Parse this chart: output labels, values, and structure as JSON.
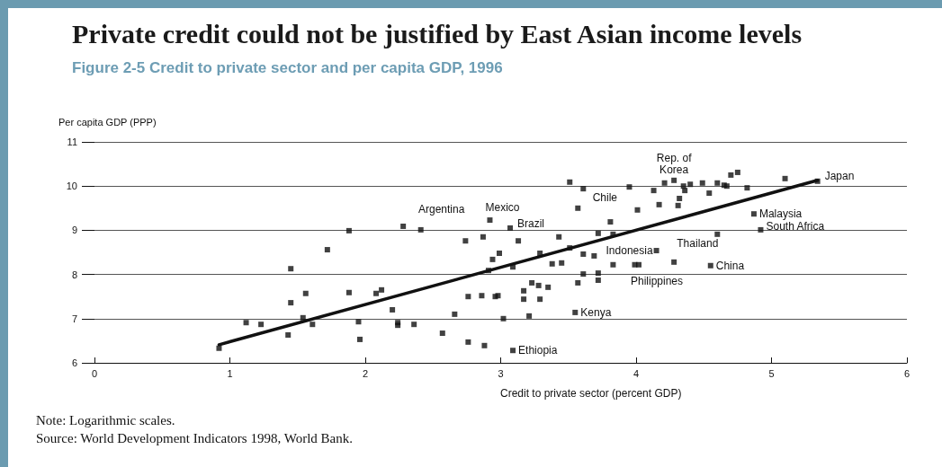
{
  "chart_data": {
    "type": "scatter",
    "title": "Private credit could not be justified by East Asian income levels",
    "subtitle": "Figure 2-5 Credit to private sector and per capita GDP, 1996",
    "xlabel": "Credit to private sector (percent GDP)",
    "ylabel": "Per capita GDP (PPP)",
    "xlim": [
      0,
      6
    ],
    "xticks": [
      0,
      1,
      2,
      3,
      4,
      5,
      6
    ],
    "ylim": [
      6,
      11
    ],
    "yticks": [
      6,
      7,
      8,
      9,
      10,
      11
    ],
    "grid": "y",
    "marker": "square",
    "series": [
      {
        "color": "#111111",
        "x": [
          0.92,
          1.12,
          1.23,
          1.43,
          1.45,
          1.45,
          1.54,
          1.56,
          1.61,
          1.72,
          1.88,
          1.88,
          1.95,
          1.96,
          2.08,
          2.12,
          2.2,
          2.24,
          2.24,
          2.36,
          2.28,
          2.41,
          2.57,
          2.66,
          2.76,
          2.76,
          2.74,
          2.86,
          2.87,
          2.88,
          2.92,
          2.94,
          2.96,
          2.98,
          2.99,
          2.91,
          3.02,
          3.07,
          3.09,
          3.09,
          3.13,
          3.17,
          3.17,
          3.21,
          3.23,
          3.29,
          3.28,
          3.29,
          3.35,
          3.38,
          3.43,
          3.45,
          3.51,
          3.51,
          3.55,
          3.57,
          3.57,
          3.61,
          3.61,
          3.61,
          3.69,
          3.72,
          3.72,
          3.72,
          3.81,
          3.83,
          3.83,
          3.95,
          3.99,
          4.02,
          4.01,
          4.13,
          4.15,
          4.17,
          4.21,
          4.28,
          4.28,
          4.31,
          4.32,
          4.35,
          4.36,
          4.4,
          4.49,
          4.54,
          4.55,
          4.6,
          4.6,
          4.65,
          4.67,
          4.7,
          4.75,
          4.82,
          4.87,
          4.92,
          5.1,
          5.34
        ],
        "values": [
          6.33,
          6.91,
          6.87,
          6.63,
          7.36,
          8.13,
          7.02,
          7.57,
          6.87,
          8.56,
          8.99,
          7.59,
          6.93,
          6.53,
          7.57,
          7.65,
          7.2,
          6.85,
          6.91,
          6.87,
          9.09,
          9.01,
          6.67,
          7.1,
          6.47,
          7.5,
          8.76,
          7.52,
          8.85,
          6.39,
          9.23,
          8.34,
          7.5,
          7.52,
          8.48,
          8.09,
          7.0,
          9.05,
          6.28,
          8.17,
          8.76,
          7.63,
          7.44,
          7.06,
          7.81,
          8.48,
          7.75,
          7.44,
          7.71,
          8.24,
          8.85,
          8.26,
          8.6,
          10.09,
          7.14,
          9.5,
          7.81,
          8.01,
          9.94,
          8.46,
          8.42,
          8.93,
          8.03,
          7.87,
          9.19,
          8.22,
          8.91,
          9.98,
          8.22,
          8.22,
          9.46,
          9.9,
          8.54,
          9.58,
          10.07,
          8.28,
          10.13,
          9.56,
          9.72,
          10.0,
          9.9,
          10.04,
          10.07,
          9.84,
          8.2,
          10.07,
          8.91,
          10.02,
          10.0,
          10.25,
          10.31,
          9.96,
          9.37,
          9.01,
          10.17,
          10.11
        ]
      },
      {
        "type": "line",
        "marker": "none",
        "color": "#111111",
        "x": [
          0.92,
          5.34
        ],
        "values": [
          6.41,
          10.13
        ]
      }
    ],
    "annotations": [
      "Note: Logarithmic scales.",
      "Source: World Development Indicators 1998, World Bank.",
      {
        "text": "Argentina",
        "x": 2.41,
        "y": 9.01
      },
      {
        "text": "Mexico",
        "x": 2.92,
        "y": 9.23
      },
      {
        "text": "Brazil",
        "x": 3.07,
        "y": 9.05
      },
      {
        "text": "Chile",
        "x": 3.61,
        "y": 9.94
      },
      {
        "text": "Rep. of\nKorea",
        "x": 4.28,
        "y": 10.13
      },
      {
        "text": "Indonesia",
        "x": 4.15,
        "y": 8.54
      },
      {
        "text": "Kenya",
        "x": 3.55,
        "y": 7.14
      },
      {
        "text": "Ethiopia",
        "x": 3.09,
        "y": 6.28
      },
      {
        "text": "Japan",
        "x": 5.34,
        "y": 10.11
      },
      {
        "text": "Malaysia",
        "x": 4.87,
        "y": 9.37
      },
      {
        "text": "South Africa",
        "x": 4.92,
        "y": 9.01
      },
      {
        "text": "Thailand",
        "x": 4.6,
        "y": 8.91
      },
      {
        "text": "China",
        "x": 4.55,
        "y": 8.2
      },
      {
        "text": "Philippines",
        "x": 4.02,
        "y": 8.22
      }
    ]
  }
}
